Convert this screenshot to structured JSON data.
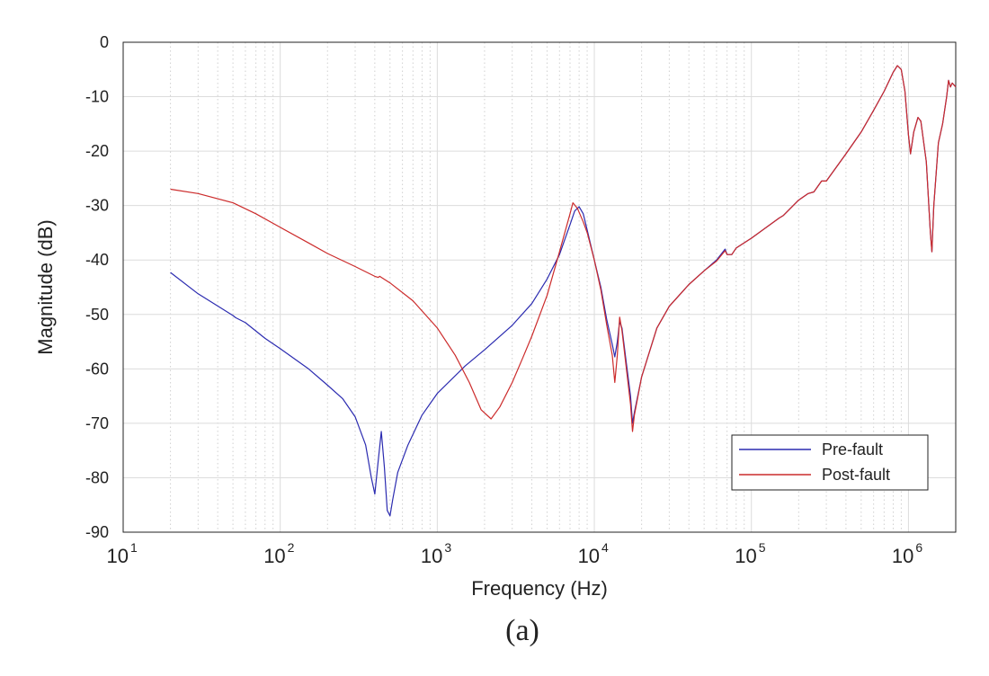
{
  "chart_data": {
    "type": "line",
    "title": "",
    "xlabel": "Frequency (Hz)",
    "ylabel": "Magnitude (dB)",
    "caption": "(a)",
    "x_scale": "log",
    "xlim": [
      10,
      2000000
    ],
    "ylim": [
      -90,
      0
    ],
    "grid": true,
    "legend_position": "bottom-right",
    "x_ticks": [
      {
        "base": "10",
        "exp": "1",
        "value": 10
      },
      {
        "base": "10",
        "exp": "2",
        "value": 100
      },
      {
        "base": "10",
        "exp": "3",
        "value": 1000
      },
      {
        "base": "10",
        "exp": "4",
        "value": 10000
      },
      {
        "base": "10",
        "exp": "5",
        "value": 100000
      },
      {
        "base": "10",
        "exp": "6",
        "value": 1000000
      }
    ],
    "y_ticks": [
      0,
      -10,
      -20,
      -30,
      -40,
      -50,
      -60,
      -70,
      -80,
      -90
    ],
    "series": [
      {
        "name": "Pre-fault",
        "color": "#2b2bb0",
        "points": [
          [
            20,
            -42.3
          ],
          [
            30,
            -46.2
          ],
          [
            50,
            -50.2
          ],
          [
            52,
            -50.6
          ],
          [
            60,
            -51.5
          ],
          [
            80,
            -54.4
          ],
          [
            100,
            -56.3
          ],
          [
            150,
            -59.9
          ],
          [
            200,
            -63.0
          ],
          [
            250,
            -65.5
          ],
          [
            300,
            -68.8
          ],
          [
            350,
            -74.0
          ],
          [
            380,
            -80.0
          ],
          [
            400,
            -83.0
          ],
          [
            420,
            -77.0
          ],
          [
            440,
            -71.5
          ],
          [
            460,
            -78.0
          ],
          [
            480,
            -86.0
          ],
          [
            500,
            -87.0
          ],
          [
            520,
            -84.0
          ],
          [
            560,
            -79.0
          ],
          [
            650,
            -74.0
          ],
          [
            800,
            -68.5
          ],
          [
            1000,
            -64.5
          ],
          [
            1500,
            -59.5
          ],
          [
            2000,
            -56.5
          ],
          [
            3000,
            -52.0
          ],
          [
            4000,
            -48.0
          ],
          [
            5000,
            -43.5
          ],
          [
            6000,
            -39.0
          ],
          [
            7000,
            -33.5
          ],
          [
            7500,
            -31.0
          ],
          [
            8000,
            -30.2
          ],
          [
            8500,
            -31.5
          ],
          [
            9000,
            -34.5
          ],
          [
            10000,
            -40.0
          ],
          [
            11000,
            -45.0
          ],
          [
            12000,
            -51.0
          ],
          [
            13000,
            -55.5
          ],
          [
            13500,
            -57.8
          ],
          [
            14000,
            -55.0
          ],
          [
            14500,
            -51.3
          ],
          [
            15000,
            -52.5
          ],
          [
            16000,
            -59.0
          ],
          [
            17000,
            -65.0
          ],
          [
            17500,
            -70.0
          ],
          [
            18000,
            -68.0
          ],
          [
            20000,
            -61.5
          ],
          [
            25000,
            -52.5
          ],
          [
            30000,
            -48.5
          ],
          [
            40000,
            -44.5
          ],
          [
            50000,
            -42.0
          ],
          [
            60000,
            -40.0
          ],
          [
            68000,
            -38.0
          ],
          [
            70000,
            -39.0
          ],
          [
            75000,
            -39.0
          ],
          [
            80000,
            -37.8
          ],
          [
            100000,
            -36.0
          ],
          [
            150000,
            -32.3
          ],
          [
            160000,
            -31.8
          ],
          [
            200000,
            -29.0
          ],
          [
            230000,
            -27.8
          ],
          [
            250000,
            -27.5
          ],
          [
            280000,
            -25.5
          ],
          [
            300000,
            -25.5
          ],
          [
            400000,
            -20.5
          ],
          [
            500000,
            -16.5
          ],
          [
            600000,
            -12.5
          ],
          [
            700000,
            -9.0
          ],
          [
            800000,
            -5.5
          ],
          [
            850000,
            -4.3
          ],
          [
            900000,
            -5.0
          ],
          [
            950000,
            -9.0
          ],
          [
            1000000,
            -17.0
          ],
          [
            1030000,
            -20.5
          ],
          [
            1080000,
            -16.5
          ],
          [
            1150000,
            -13.8
          ],
          [
            1200000,
            -14.5
          ],
          [
            1300000,
            -22.0
          ],
          [
            1380000,
            -35.0
          ],
          [
            1410000,
            -38.5
          ],
          [
            1450000,
            -30.0
          ],
          [
            1550000,
            -18.5
          ],
          [
            1650000,
            -15.0
          ],
          [
            1750000,
            -10.0
          ],
          [
            1800000,
            -7.0
          ],
          [
            1850000,
            -8.2
          ],
          [
            1900000,
            -7.5
          ],
          [
            2000000,
            -8.2
          ]
        ]
      },
      {
        "name": "Post-fault",
        "color": "#cc2b2b",
        "points": [
          [
            20,
            -27.0
          ],
          [
            30,
            -27.8
          ],
          [
            50,
            -29.5
          ],
          [
            70,
            -31.5
          ],
          [
            100,
            -34.0
          ],
          [
            150,
            -36.8
          ],
          [
            200,
            -38.8
          ],
          [
            300,
            -41.2
          ],
          [
            400,
            -43.0
          ],
          [
            420,
            -43.2
          ],
          [
            430,
            -43.0
          ],
          [
            500,
            -44.2
          ],
          [
            700,
            -47.5
          ],
          [
            1000,
            -52.5
          ],
          [
            1300,
            -57.5
          ],
          [
            1600,
            -62.5
          ],
          [
            1900,
            -67.5
          ],
          [
            2200,
            -69.2
          ],
          [
            2500,
            -67.0
          ],
          [
            3000,
            -62.5
          ],
          [
            3500,
            -58.0
          ],
          [
            4000,
            -54.0
          ],
          [
            5000,
            -46.5
          ],
          [
            6000,
            -38.5
          ],
          [
            7000,
            -31.5
          ],
          [
            7300,
            -29.5
          ],
          [
            7800,
            -30.5
          ],
          [
            8500,
            -33.0
          ],
          [
            9000,
            -35.0
          ],
          [
            10000,
            -40.0
          ],
          [
            11000,
            -45.5
          ],
          [
            12000,
            -52.0
          ],
          [
            13000,
            -57.5
          ],
          [
            13500,
            -62.5
          ],
          [
            14000,
            -57.5
          ],
          [
            14500,
            -50.5
          ],
          [
            15000,
            -53.0
          ],
          [
            16000,
            -60.0
          ],
          [
            17000,
            -66.5
          ],
          [
            17500,
            -71.5
          ],
          [
            18000,
            -68.5
          ],
          [
            20000,
            -61.5
          ],
          [
            25000,
            -52.5
          ],
          [
            30000,
            -48.5
          ],
          [
            40000,
            -44.5
          ],
          [
            50000,
            -42.0
          ],
          [
            60000,
            -40.2
          ],
          [
            68000,
            -38.3
          ],
          [
            70000,
            -39.0
          ],
          [
            75000,
            -39.0
          ],
          [
            80000,
            -37.8
          ],
          [
            100000,
            -36.0
          ],
          [
            150000,
            -32.3
          ],
          [
            160000,
            -31.8
          ],
          [
            200000,
            -29.0
          ],
          [
            230000,
            -27.8
          ],
          [
            250000,
            -27.5
          ],
          [
            280000,
            -25.5
          ],
          [
            300000,
            -25.5
          ],
          [
            400000,
            -20.5
          ],
          [
            500000,
            -16.5
          ],
          [
            600000,
            -12.5
          ],
          [
            700000,
            -9.0
          ],
          [
            800000,
            -5.5
          ],
          [
            850000,
            -4.3
          ],
          [
            900000,
            -5.0
          ],
          [
            950000,
            -9.0
          ],
          [
            1000000,
            -17.0
          ],
          [
            1030000,
            -20.5
          ],
          [
            1080000,
            -16.5
          ],
          [
            1150000,
            -13.8
          ],
          [
            1200000,
            -14.5
          ],
          [
            1300000,
            -22.0
          ],
          [
            1380000,
            -35.0
          ],
          [
            1410000,
            -38.5
          ],
          [
            1450000,
            -30.0
          ],
          [
            1550000,
            -18.5
          ],
          [
            1650000,
            -15.0
          ],
          [
            1750000,
            -10.0
          ],
          [
            1800000,
            -7.0
          ],
          [
            1850000,
            -8.2
          ],
          [
            1900000,
            -7.5
          ],
          [
            2000000,
            -8.2
          ]
        ]
      }
    ]
  }
}
